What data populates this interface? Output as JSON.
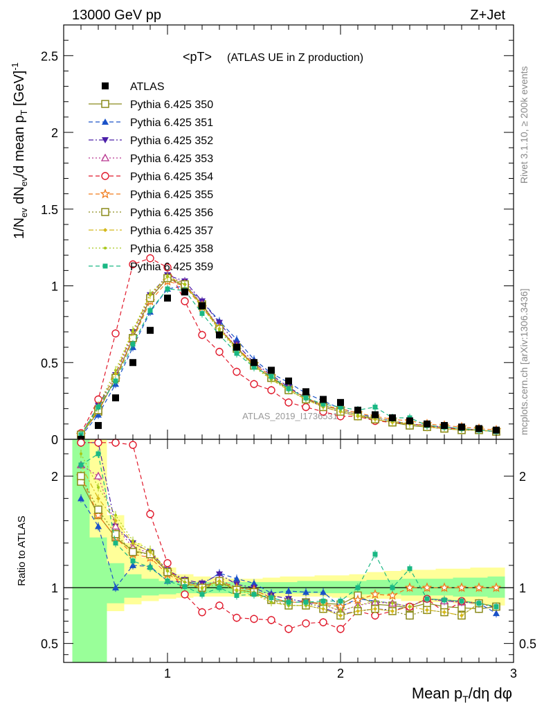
{
  "header": {
    "energy": "13000 GeV pp",
    "process": "Z+Jet"
  },
  "side": {
    "rivet": "Rivet 3.1.10, ≥ 200k events",
    "mcplots": "mcplots.cern.ch [arXiv:1306.3436]"
  },
  "watermark": "ATLAS_2019_I1736531",
  "chart_data": [
    {
      "type": "scatter",
      "title": "<pT> (ATLAS UE in Z production)",
      "title_main": "<pT>",
      "title_sub": "(ATLAS UE in Z production)",
      "ylabel": "1/Nev dNev/d mean pT [GeV]-1",
      "xlim": [
        0.4,
        3.0
      ],
      "ylim": [
        0,
        2.7
      ],
      "x_ticks": [
        1,
        2,
        3
      ],
      "y_ticks": [
        0,
        0.5,
        1,
        1.5,
        2,
        2.5
      ],
      "y_tick_labels": [
        "0",
        "0.5",
        "1",
        "1.5",
        "2",
        "2.5"
      ],
      "legend_position": "top-left",
      "x": [
        0.5,
        0.6,
        0.7,
        0.8,
        0.9,
        1.0,
        1.1,
        1.2,
        1.3,
        1.4,
        1.5,
        1.6,
        1.7,
        1.8,
        1.9,
        2.0,
        2.1,
        2.2,
        2.3,
        2.4,
        2.5,
        2.6,
        2.7,
        2.8,
        2.9
      ],
      "series": [
        {
          "name": "ATLAS",
          "color": "#000000",
          "marker": "filled-square",
          "line": "none",
          "values": [
            0.0,
            0.09,
            0.27,
            0.5,
            0.71,
            0.92,
            0.96,
            0.87,
            0.68,
            0.6,
            0.5,
            0.45,
            0.38,
            0.31,
            0.26,
            0.24,
            0.19,
            0.16,
            0.14,
            0.12,
            0.1,
            0.09,
            0.08,
            0.07,
            0.06
          ]
        },
        {
          "name": "Pythia 6.425 350",
          "color": "#8a8a1a",
          "marker": "open-square",
          "line": "solid",
          "values": [
            0.03,
            0.18,
            0.4,
            0.66,
            0.92,
            1.05,
            1.0,
            0.88,
            0.72,
            0.6,
            0.48,
            0.4,
            0.33,
            0.27,
            0.22,
            0.19,
            0.16,
            0.13,
            0.11,
            0.09,
            0.08,
            0.07,
            0.06,
            0.06,
            0.05
          ]
        },
        {
          "name": "Pythia 6.425 351",
          "color": "#1a52c8",
          "marker": "filled-triangle-up",
          "line": "dashed",
          "values": [
            0.02,
            0.16,
            0.36,
            0.6,
            0.83,
            0.98,
            1.0,
            0.9,
            0.77,
            0.65,
            0.52,
            0.43,
            0.37,
            0.3,
            0.25,
            0.2,
            0.17,
            0.14,
            0.12,
            0.1,
            0.09,
            0.08,
            0.07,
            0.06,
            0.05
          ]
        },
        {
          "name": "Pythia 6.425 352",
          "color": "#4b1fa8",
          "marker": "filled-triangle-down",
          "line": "dashdot",
          "values": [
            0.03,
            0.22,
            0.42,
            0.7,
            0.94,
            1.07,
            1.03,
            0.9,
            0.76,
            0.62,
            0.5,
            0.42,
            0.34,
            0.27,
            0.21,
            0.18,
            0.15,
            0.13,
            0.11,
            0.1,
            0.09,
            0.08,
            0.07,
            0.06,
            0.05
          ]
        },
        {
          "name": "Pythia 6.425 353",
          "color": "#b8348f",
          "marker": "open-triangle-up",
          "line": "dotted",
          "values": [
            0.03,
            0.2,
            0.42,
            0.68,
            0.93,
            1.06,
            1.02,
            0.88,
            0.73,
            0.6,
            0.49,
            0.41,
            0.33,
            0.27,
            0.22,
            0.19,
            0.16,
            0.14,
            0.12,
            0.1,
            0.09,
            0.08,
            0.07,
            0.06,
            0.05
          ]
        },
        {
          "name": "Pythia 6.425 354",
          "color": "#e0182a",
          "marker": "open-circle",
          "line": "dashed",
          "values": [
            0.04,
            0.26,
            0.69,
            1.14,
            1.18,
            1.12,
            0.9,
            0.68,
            0.57,
            0.44,
            0.36,
            0.32,
            0.24,
            0.21,
            0.18,
            0.15,
            0.15,
            0.12,
            0.11,
            0.1,
            0.09,
            0.07,
            0.07,
            0.06,
            0.05
          ]
        },
        {
          "name": "Pythia 6.425 355",
          "color": "#f07a1a",
          "marker": "open-star",
          "line": "dashed",
          "values": [
            0.03,
            0.19,
            0.39,
            0.65,
            0.9,
            1.03,
            1.0,
            0.86,
            0.72,
            0.6,
            0.49,
            0.41,
            0.33,
            0.27,
            0.22,
            0.2,
            0.17,
            0.15,
            0.13,
            0.12,
            0.1,
            0.09,
            0.08,
            0.07,
            0.06
          ]
        },
        {
          "name": "Pythia 6.425 356",
          "color": "#8a8a1a",
          "marker": "open-square",
          "line": "dotted",
          "values": [
            0.03,
            0.19,
            0.4,
            0.66,
            0.92,
            1.05,
            1.01,
            0.87,
            0.72,
            0.59,
            0.48,
            0.4,
            0.32,
            0.26,
            0.21,
            0.18,
            0.15,
            0.13,
            0.11,
            0.09,
            0.08,
            0.07,
            0.06,
            0.06,
            0.05
          ]
        },
        {
          "name": "Pythia 6.425 357",
          "color": "#d4b81a",
          "marker": "small-diamond",
          "line": "dashdot",
          "values": [
            0.03,
            0.2,
            0.43,
            0.7,
            0.94,
            1.06,
            1.01,
            0.87,
            0.72,
            0.59,
            0.48,
            0.39,
            0.32,
            0.26,
            0.21,
            0.18,
            0.15,
            0.13,
            0.11,
            0.1,
            0.08,
            0.07,
            0.06,
            0.06,
            0.05
          ]
        },
        {
          "name": "Pythia 6.425 358",
          "color": "#a8c81a",
          "marker": "small-dot",
          "line": "dotted",
          "values": [
            0.03,
            0.22,
            0.45,
            0.71,
            0.95,
            1.06,
            1.01,
            0.86,
            0.71,
            0.58,
            0.47,
            0.39,
            0.32,
            0.26,
            0.22,
            0.19,
            0.16,
            0.14,
            0.12,
            0.1,
            0.09,
            0.08,
            0.07,
            0.06,
            0.05
          ]
        },
        {
          "name": "Pythia 6.425 359",
          "color": "#1ab884",
          "marker": "filled-square-small",
          "line": "dashed",
          "values": [
            0.03,
            0.21,
            0.38,
            0.62,
            0.84,
            0.98,
            0.97,
            0.82,
            0.68,
            0.56,
            0.47,
            0.41,
            0.33,
            0.27,
            0.23,
            0.21,
            0.19,
            0.21,
            0.14,
            0.14,
            0.09,
            0.08,
            0.07,
            0.06,
            0.05
          ]
        }
      ]
    },
    {
      "type": "scatter",
      "title": "",
      "xlabel": "Mean pT/dη dφ",
      "ylabel": "Ratio to ATLAS",
      "xlim": [
        0.4,
        3.0
      ],
      "ylim": [
        0.33,
        2.33
      ],
      "x_ticks": [
        1,
        2,
        3
      ],
      "x_tick_labels": [
        "1",
        "2",
        "3"
      ],
      "y_ticks": [
        0.5,
        1,
        2
      ],
      "y_tick_labels": [
        "0.5",
        "1",
        "2"
      ],
      "reference_line": 1,
      "x": [
        0.5,
        0.6,
        0.7,
        0.8,
        0.9,
        1.0,
        1.1,
        1.2,
        1.3,
        1.4,
        1.5,
        1.6,
        1.7,
        1.8,
        1.9,
        2.0,
        2.1,
        2.2,
        2.3,
        2.4,
        2.5,
        2.6,
        2.7,
        2.8,
        2.9
      ],
      "bands": {
        "yellow": {
          "lo": [
            0.33,
            0.66,
            0.79,
            0.85,
            0.88,
            0.9,
            0.91,
            0.92,
            0.92,
            0.92,
            0.92,
            0.92,
            0.92,
            0.92,
            0.92,
            0.91,
            0.9,
            0.9,
            0.9,
            0.88,
            0.87,
            0.87,
            0.86,
            0.85,
            0.84
          ],
          "hi": [
            2.33,
            2.33,
            1.65,
            1.4,
            1.27,
            1.18,
            1.12,
            1.1,
            1.09,
            1.08,
            1.08,
            1.09,
            1.1,
            1.1,
            1.11,
            1.11,
            1.12,
            1.14,
            1.15,
            1.16,
            1.16,
            1.17,
            1.17,
            1.18,
            1.18
          ]
        },
        "green": {
          "lo": [
            0.33,
            0.33,
            0.86,
            0.91,
            0.93,
            0.94,
            0.95,
            0.95,
            0.95,
            0.95,
            0.95,
            0.95,
            0.95,
            0.95,
            0.95,
            0.95,
            0.94,
            0.94,
            0.94,
            0.93,
            0.93,
            0.93,
            0.92,
            0.92,
            0.91
          ],
          "hi": [
            2.33,
            1.45,
            1.22,
            1.12,
            1.08,
            1.06,
            1.05,
            1.05,
            1.05,
            1.05,
            1.05,
            1.05,
            1.05,
            1.06,
            1.06,
            1.06,
            1.06,
            1.07,
            1.07,
            1.08,
            1.08,
            1.08,
            1.09,
            1.09,
            1.1
          ]
        }
      },
      "series": [
        {
          "name": "Pythia 6.425 350",
          "values": [
            1.95,
            1.65,
            1.45,
            1.33,
            1.3,
            1.14,
            1.06,
            1.02,
            1.05,
            0.98,
            0.96,
            0.89,
            0.87,
            0.87,
            0.86,
            0.85,
            0.93,
            0.85,
            0.84,
            0.82,
            0.86,
            0.83,
            0.82,
            0.81,
            0.83
          ]
        },
        {
          "name": "Pythia 6.425 351",
          "values": [
            1.8,
            1.55,
            1.0,
            1.2,
            1.19,
            1.06,
            1.05,
            1.03,
            1.13,
            1.08,
            1.04,
            0.95,
            0.97,
            0.96,
            0.96,
            0.83,
            0.9,
            0.88,
            0.86,
            0.83,
            0.9,
            0.89,
            0.88,
            0.86,
            0.77
          ]
        },
        {
          "name": "Pythia 6.425 352",
          "values": [
            2.3,
            2.3,
            1.55,
            1.4,
            1.32,
            1.16,
            1.07,
            1.04,
            1.12,
            1.03,
            1.0,
            0.93,
            0.9,
            0.87,
            0.82,
            0.76,
            0.79,
            0.81,
            0.8,
            0.83,
            0.9,
            0.88,
            0.87,
            0.86,
            0.82
          ]
        },
        {
          "name": "Pythia 6.425 353",
          "values": [
            2.1,
            2.0,
            1.55,
            1.36,
            1.31,
            1.15,
            1.06,
            1.01,
            1.07,
            1.0,
            0.98,
            0.91,
            0.87,
            0.87,
            0.85,
            0.79,
            0.84,
            0.87,
            0.86,
            0.83,
            0.9,
            0.88,
            0.87,
            0.86,
            0.83
          ]
        },
        {
          "name": "Pythia 6.425 354",
          "values": [
            2.3,
            2.3,
            2.3,
            2.28,
            1.66,
            1.22,
            0.94,
            0.78,
            0.84,
            0.73,
            0.72,
            0.71,
            0.63,
            0.68,
            0.69,
            0.63,
            0.79,
            0.75,
            0.79,
            0.83,
            0.9,
            0.78,
            0.88,
            0.86,
            0.83
          ]
        },
        {
          "name": "Pythia 6.425 355",
          "values": [
            2.0,
            1.65,
            1.45,
            1.3,
            1.27,
            1.12,
            1.04,
            0.99,
            1.06,
            1.0,
            0.98,
            0.91,
            0.87,
            0.87,
            0.85,
            0.83,
            0.89,
            0.94,
            0.93,
            1.0,
            1.0,
            1.0,
            1.0,
            1.0,
            1.0
          ]
        },
        {
          "name": "Pythia 6.425 356",
          "values": [
            2.0,
            1.7,
            1.48,
            1.32,
            1.3,
            1.14,
            1.05,
            1.0,
            1.06,
            0.98,
            0.96,
            0.89,
            0.84,
            0.84,
            0.81,
            0.75,
            0.79,
            0.81,
            0.79,
            0.75,
            0.8,
            0.78,
            0.75,
            0.86,
            0.83
          ]
        },
        {
          "name": "Pythia 6.425 357",
          "values": [
            2.1,
            1.8,
            1.6,
            1.4,
            1.32,
            1.15,
            1.05,
            1.0,
            1.06,
            0.98,
            0.96,
            0.87,
            0.84,
            0.84,
            0.81,
            0.75,
            0.79,
            0.81,
            0.79,
            0.83,
            0.8,
            0.78,
            0.75,
            0.86,
            0.83
          ]
        },
        {
          "name": "Pythia 6.425 358",
          "values": [
            2.2,
            1.9,
            1.65,
            1.42,
            1.34,
            1.15,
            1.05,
            0.99,
            1.04,
            0.97,
            0.94,
            0.87,
            0.84,
            0.84,
            0.85,
            0.79,
            0.84,
            0.88,
            0.86,
            0.83,
            0.9,
            0.89,
            0.88,
            0.86,
            0.83
          ]
        },
        {
          "name": "Pythia 6.425 359",
          "values": [
            2.1,
            2.2,
            1.4,
            1.24,
            1.18,
            1.06,
            1.01,
            0.94,
            1.0,
            0.93,
            0.94,
            0.91,
            0.87,
            0.87,
            0.88,
            0.88,
            1.0,
            1.3,
            1.0,
            1.17,
            0.9,
            0.89,
            0.88,
            0.86,
            0.83
          ]
        }
      ]
    }
  ]
}
